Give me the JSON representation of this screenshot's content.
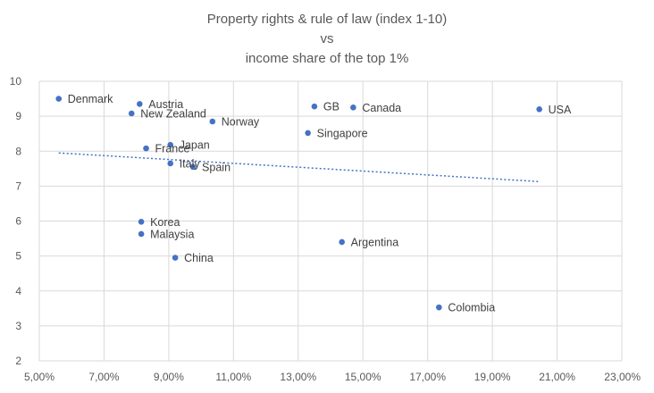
{
  "chart_data": {
    "type": "scatter",
    "title_lines": [
      "Property rights  & rule of law (index 1-10)",
      "vs",
      "income share of the top 1%"
    ],
    "x_ticks": [
      "5,00%",
      "7,00%",
      "9,00%",
      "11,00%",
      "13,00%",
      "15,00%",
      "17,00%",
      "19,00%",
      "21,00%",
      "23,00%"
    ],
    "y_ticks": [
      "2",
      "3",
      "4",
      "5",
      "6",
      "7",
      "8",
      "9",
      "10"
    ],
    "xlim": [
      5,
      23
    ],
    "ylim": [
      2,
      10
    ],
    "grid": true,
    "legend": "none",
    "point_color": "#4472c4",
    "points": [
      {
        "label": "Denmark",
        "x": 5.6,
        "y": 9.5
      },
      {
        "label": "Austria",
        "x": 8.1,
        "y": 9.35
      },
      {
        "label": "New Zealand",
        "x": 7.85,
        "y": 9.08
      },
      {
        "label": "Norway",
        "x": 10.35,
        "y": 8.85
      },
      {
        "label": "GB",
        "x": 13.5,
        "y": 9.28
      },
      {
        "label": "Canada",
        "x": 14.7,
        "y": 9.25
      },
      {
        "label": "USA",
        "x": 20.45,
        "y": 9.2
      },
      {
        "label": "Singapore",
        "x": 13.3,
        "y": 8.52
      },
      {
        "label": "France",
        "x": 8.3,
        "y": 8.08
      },
      {
        "label": "Japan",
        "x": 9.05,
        "y": 8.18
      },
      {
        "label": "Italy",
        "x": 9.05,
        "y": 7.65
      },
      {
        "label": "Spain",
        "x": 9.75,
        "y": 7.55
      },
      {
        "label": "Korea",
        "x": 8.15,
        "y": 5.98
      },
      {
        "label": "Malaysia",
        "x": 8.15,
        "y": 5.63
      },
      {
        "label": "China",
        "x": 9.2,
        "y": 4.95
      },
      {
        "label": "Argentina",
        "x": 14.35,
        "y": 5.4
      },
      {
        "label": "Colombia",
        "x": 17.35,
        "y": 3.53
      }
    ],
    "trendline": {
      "type": "linear",
      "x": [
        5.6,
        20.45
      ],
      "y": [
        7.95,
        7.13
      ]
    }
  }
}
